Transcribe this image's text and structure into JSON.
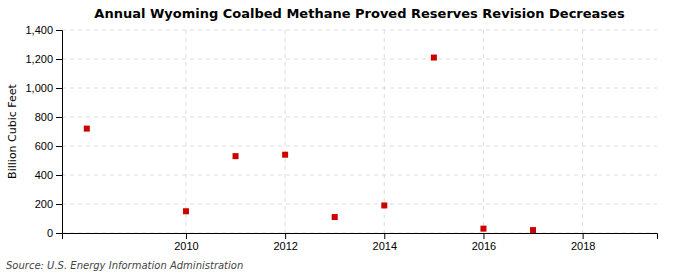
{
  "chart_data": {
    "type": "scatter",
    "title": "Annual Wyoming Coalbed Methane Proved Reserves Revision Decreases",
    "ylabel": "Billion Cubic Feet",
    "source": "Source: U.S. Energy Information Administration",
    "x": [
      2008,
      2010,
      2011,
      2012,
      2013,
      2014,
      2015,
      2016,
      2017
    ],
    "values": [
      720,
      150,
      530,
      540,
      110,
      190,
      1210,
      30,
      20
    ],
    "color": "#cc0000",
    "marker": "square",
    "xlim": [
      2007.5,
      2019.5
    ],
    "xticks": [
      2010,
      2012,
      2014,
      2016,
      2018
    ],
    "ylim": [
      0,
      1400
    ],
    "yticks": [
      0,
      200,
      400,
      600,
      800,
      {
        "value": 1000,
        "label": "1,000"
      },
      {
        "value": 1200,
        "label": "1,200"
      },
      {
        "value": 1400,
        "label": "1,400"
      }
    ],
    "grid": true
  }
}
